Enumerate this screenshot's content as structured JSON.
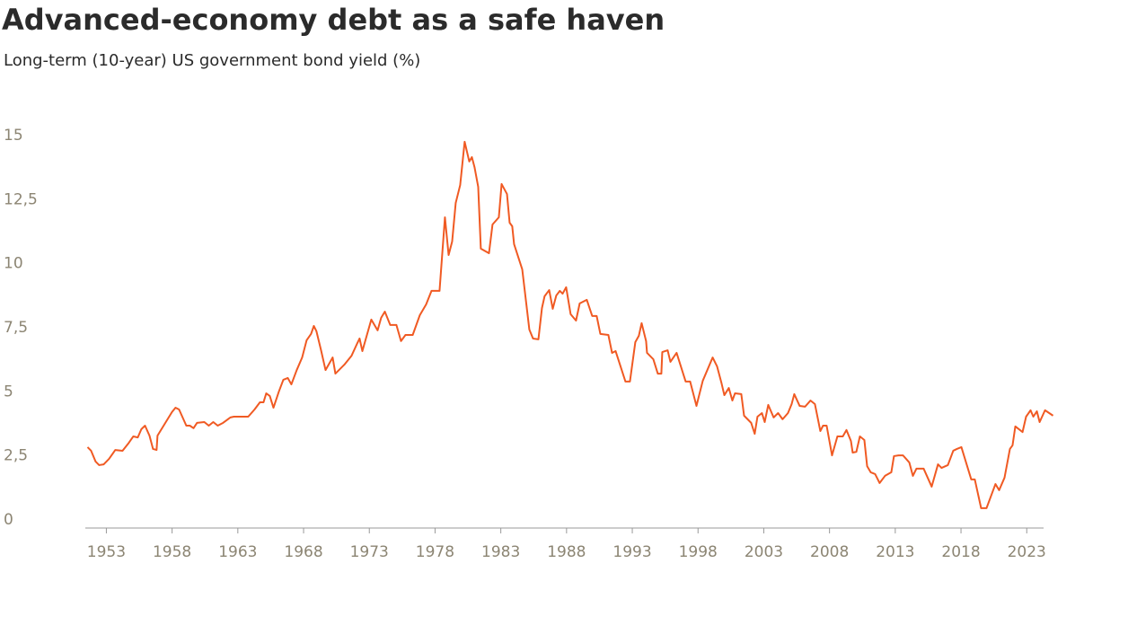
{
  "chart_data": {
    "type": "line",
    "title": "Advanced-economy debt as a safe haven",
    "subtitle": "Long-term (10-year) US government bond yield (%)",
    "color": "#f05a23",
    "x": [
      1951.57,
      1951.84,
      1952.18,
      1952.45,
      1952.8,
      1953.2,
      1953.68,
      1954.23,
      1954.71,
      1955.05,
      1955.39,
      1955.66,
      1955.94,
      1956.28,
      1956.55,
      1956.82,
      1956.89,
      1957.44,
      1957.99,
      1958.26,
      1958.53,
      1959.08,
      1959.35,
      1959.63,
      1959.9,
      1960.45,
      1960.79,
      1961.13,
      1961.47,
      1961.88,
      1962.43,
      1962.7,
      1963.79,
      1964.27,
      1964.68,
      1964.95,
      1965.16,
      1965.43,
      1965.71,
      1966.12,
      1966.46,
      1966.8,
      1967.07,
      1967.48,
      1967.89,
      1968.23,
      1968.57,
      1968.78,
      1968.98,
      1969.33,
      1969.67,
      1970.21,
      1970.42,
      1971.1,
      1971.65,
      1972.06,
      1972.26,
      1972.47,
      1973.15,
      1973.63,
      1973.9,
      1974.18,
      1974.59,
      1975.06,
      1975.41,
      1975.75,
      1976.3,
      1976.84,
      1977.32,
      1977.73,
      1978.34,
      1978.75,
      1979.03,
      1979.3,
      1979.57,
      1979.91,
      1980.25,
      1980.6,
      1980.8,
      1981.0,
      1981.28,
      1981.48,
      1982.1,
      1982.37,
      1982.85,
      1983.06,
      1983.47,
      1983.67,
      1983.87,
      1984.01,
      1984.63,
      1985.17,
      1985.45,
      1985.86,
      1986.13,
      1986.33,
      1986.68,
      1986.95,
      1987.22,
      1987.49,
      1987.7,
      1987.97,
      1988.31,
      1988.72,
      1989.0,
      1989.54,
      1989.95,
      1990.29,
      1990.57,
      1991.18,
      1991.46,
      1991.73,
      1992.48,
      1992.82,
      1993.23,
      1993.5,
      1993.71,
      1994.05,
      1994.12,
      1994.6,
      1994.94,
      1995.21,
      1995.28,
      1995.69,
      1995.9,
      1996.37,
      1997.06,
      1997.4,
      1997.88,
      1998.36,
      1999.11,
      1999.45,
      1999.79,
      2000.0,
      2000.34,
      2000.61,
      2000.81,
      2001.29,
      2001.5,
      2002.04,
      2002.31,
      2002.52,
      2002.86,
      2003.07,
      2003.34,
      2003.75,
      2004.09,
      2004.43,
      2004.84,
      2005.12,
      2005.32,
      2005.73,
      2006.14,
      2006.55,
      2006.89,
      2007.3,
      2007.51,
      2007.78,
      2008.19,
      2008.6,
      2009.01,
      2009.29,
      2009.63,
      2009.76,
      2010.04,
      2010.31,
      2010.65,
      2010.86,
      2011.13,
      2011.47,
      2011.81,
      2012.22,
      2012.7,
      2012.9,
      2013.25,
      2013.59,
      2014.07,
      2014.34,
      2014.61,
      2015.16,
      2015.77,
      2016.25,
      2016.52,
      2017.0,
      2017.41,
      2017.69,
      2018.03,
      2018.78,
      2019.05,
      2019.53,
      2019.94,
      2020.62,
      2020.9,
      2021.31,
      2021.72,
      2021.92,
      2022.13,
      2022.68,
      2022.95,
      2023.29,
      2023.5,
      2023.77,
      2023.98,
      2024.39,
      2025.0
    ],
    "values": [
      2.84,
      2.7,
      2.28,
      2.14,
      2.17,
      2.38,
      2.73,
      2.7,
      3.01,
      3.26,
      3.22,
      3.54,
      3.68,
      3.29,
      2.77,
      2.73,
      3.29,
      3.75,
      4.21,
      4.38,
      4.31,
      3.68,
      3.68,
      3.58,
      3.79,
      3.82,
      3.68,
      3.82,
      3.68,
      3.79,
      4.0,
      4.03,
      4.03,
      4.31,
      4.59,
      4.59,
      4.94,
      4.84,
      4.38,
      5.01,
      5.47,
      5.54,
      5.29,
      5.85,
      6.34,
      7.01,
      7.26,
      7.57,
      7.36,
      6.62,
      5.85,
      6.34,
      5.71,
      6.06,
      6.41,
      6.87,
      7.08,
      6.59,
      7.82,
      7.4,
      7.89,
      8.13,
      7.61,
      7.61,
      6.98,
      7.22,
      7.22,
      7.99,
      8.41,
      8.94,
      8.94,
      11.81,
      10.34,
      10.87,
      12.37,
      13.07,
      14.76,
      13.99,
      14.16,
      13.77,
      13.0,
      10.59,
      10.41,
      11.53,
      11.81,
      13.11,
      12.72,
      11.6,
      11.46,
      10.76,
      9.78,
      7.43,
      7.08,
      7.05,
      8.27,
      8.73,
      8.97,
      8.24,
      8.76,
      8.94,
      8.83,
      9.08,
      8.03,
      7.78,
      8.45,
      8.59,
      7.96,
      7.96,
      7.26,
      7.22,
      6.52,
      6.59,
      5.4,
      5.4,
      6.94,
      7.19,
      7.68,
      6.98,
      6.52,
      6.27,
      5.71,
      5.71,
      6.55,
      6.62,
      6.17,
      6.52,
      5.4,
      5.4,
      4.45,
      5.43,
      6.34,
      5.99,
      5.33,
      4.87,
      5.15,
      4.66,
      4.94,
      4.91,
      4.07,
      3.79,
      3.36,
      4.03,
      4.17,
      3.82,
      4.49,
      4.0,
      4.17,
      3.93,
      4.17,
      4.52,
      4.91,
      4.45,
      4.42,
      4.66,
      4.52,
      3.47,
      3.68,
      3.68,
      2.52,
      3.26,
      3.26,
      3.51,
      3.08,
      2.63,
      2.66,
      3.26,
      3.12,
      2.1,
      1.86,
      1.79,
      1.44,
      1.72,
      1.86,
      2.49,
      2.52,
      2.52,
      2.24,
      1.72,
      2.0,
      2.0,
      1.3,
      2.17,
      2.03,
      2.14,
      2.7,
      2.77,
      2.84,
      1.58,
      1.58,
      0.46,
      0.46,
      1.4,
      1.16,
      1.65,
      2.77,
      2.91,
      3.65,
      3.43,
      4.03,
      4.28,
      4.03,
      4.24,
      3.82,
      4.28,
      4.07
    ],
    "xlim": [
      1951.4,
      2025.1
    ],
    "xticks": [
      1953,
      1958,
      1963,
      1968,
      1973,
      1978,
      1983,
      1988,
      1993,
      1998,
      2003,
      2008,
      2013,
      2018,
      2023
    ],
    "ylim": [
      0,
      15
    ],
    "yticks": [
      0,
      {
        "value": 2.5,
        "label": "2,5"
      },
      5,
      {
        "value": 7.5,
        "label": "7,5"
      },
      10,
      {
        "value": 12.5,
        "label": "12,5"
      },
      15
    ]
  }
}
